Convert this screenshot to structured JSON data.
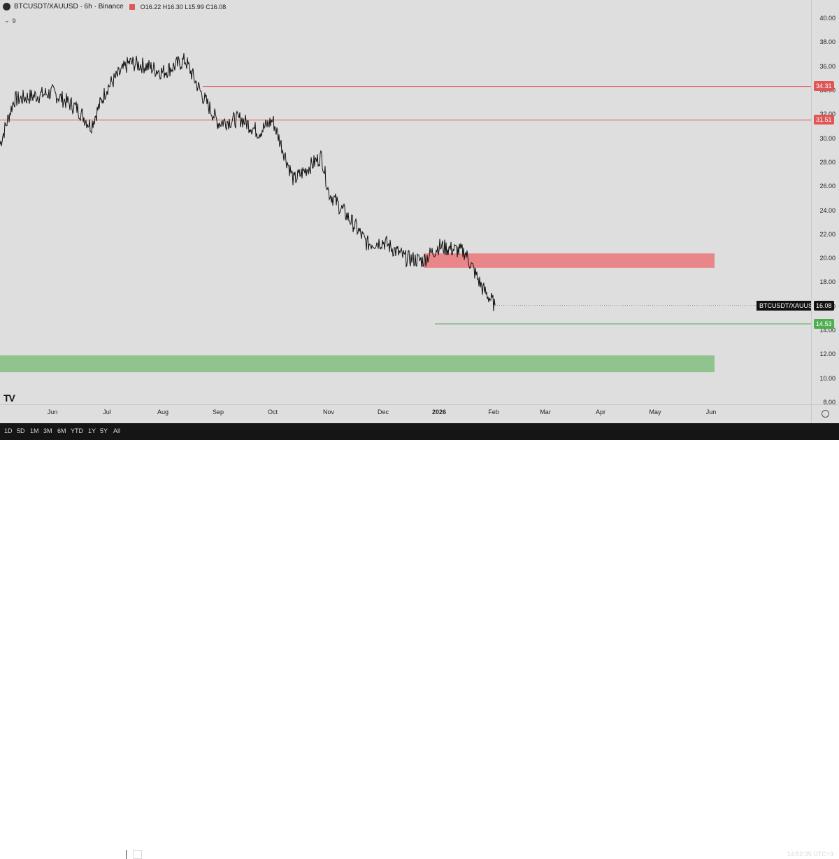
{
  "header": {
    "symbol": "BTCUSDT/XAUUSD · 6h · Binance",
    "ohlc": "O16.22 H16.30 L15.99 C16.08",
    "indicator_count": "9",
    "indicator_chevron": "⌄"
  },
  "price_axis": {
    "labels": [
      "40.00",
      "38.00",
      "36.00",
      "34.00",
      "32.00",
      "30.00",
      "28.00",
      "26.00",
      "24.00",
      "22.00",
      "20.00",
      "18.00",
      "16.00",
      "14.00",
      "12.00",
      "10.00",
      "8.00"
    ]
  },
  "time_axis": {
    "labels": [
      "Jun",
      "Jul",
      "Aug",
      "Sep",
      "Oct",
      "Nov",
      "Dec",
      "2026",
      "Feb",
      "Mar",
      "Apr",
      "May",
      "Jun"
    ]
  },
  "levels": {
    "resistance_1": "34.31",
    "resistance_2": "31.51",
    "support_1": "14.53",
    "current_symbol": "BTCUSDT/XAUUSD",
    "current_price": "16.08"
  },
  "zones": {
    "supply": {
      "low": 19.2,
      "high": 20.4,
      "color": "#e8868a"
    },
    "demand": {
      "low": 10.5,
      "high": 11.9,
      "color": "#8fc48f"
    }
  },
  "colors": {
    "resistance_line": "#e05555",
    "support_line": "#4caf50",
    "price_line": "#111111",
    "background": "#dedede"
  },
  "chart_data": {
    "type": "line",
    "x": [
      "May 15",
      "May 22",
      "Jun 1",
      "Jun 10",
      "Jun 20",
      "Jul 1",
      "Jul 10",
      "Jul 20",
      "Aug 1",
      "Aug 10",
      "Aug 20",
      "Sep 1",
      "Sep 10",
      "Sep 20",
      "Oct 1",
      "Oct 10",
      "Oct 20",
      "Nov 1",
      "Nov 10",
      "Nov 20",
      "Dec 1",
      "Dec 10",
      "Dec 20",
      "Jan 1",
      "Jan 10",
      "Jan 20",
      "Feb 1"
    ],
    "series": [
      {
        "values": [
          29.5,
          33.2,
          33.8,
          32.5,
          31.0,
          34.2,
          36.3,
          36.0,
          35.5,
          36.5,
          33.5,
          31.3,
          31.6,
          30.5,
          31.5,
          26.5,
          28.5,
          25.5,
          22.5,
          21.2,
          21.4,
          20.0,
          19.8,
          21.0,
          20.5,
          17.5,
          16.08
        ]
      }
    ],
    "ylim": [
      8,
      40
    ],
    "grid": false
  },
  "toolbar": {
    "timeframes": [
      "1D",
      "5D",
      "1M",
      "3M",
      "6M",
      "YTD",
      "1Y",
      "5Y",
      "All"
    ],
    "clock": "14:52:35 UTC+3"
  },
  "logo_text": "TV"
}
